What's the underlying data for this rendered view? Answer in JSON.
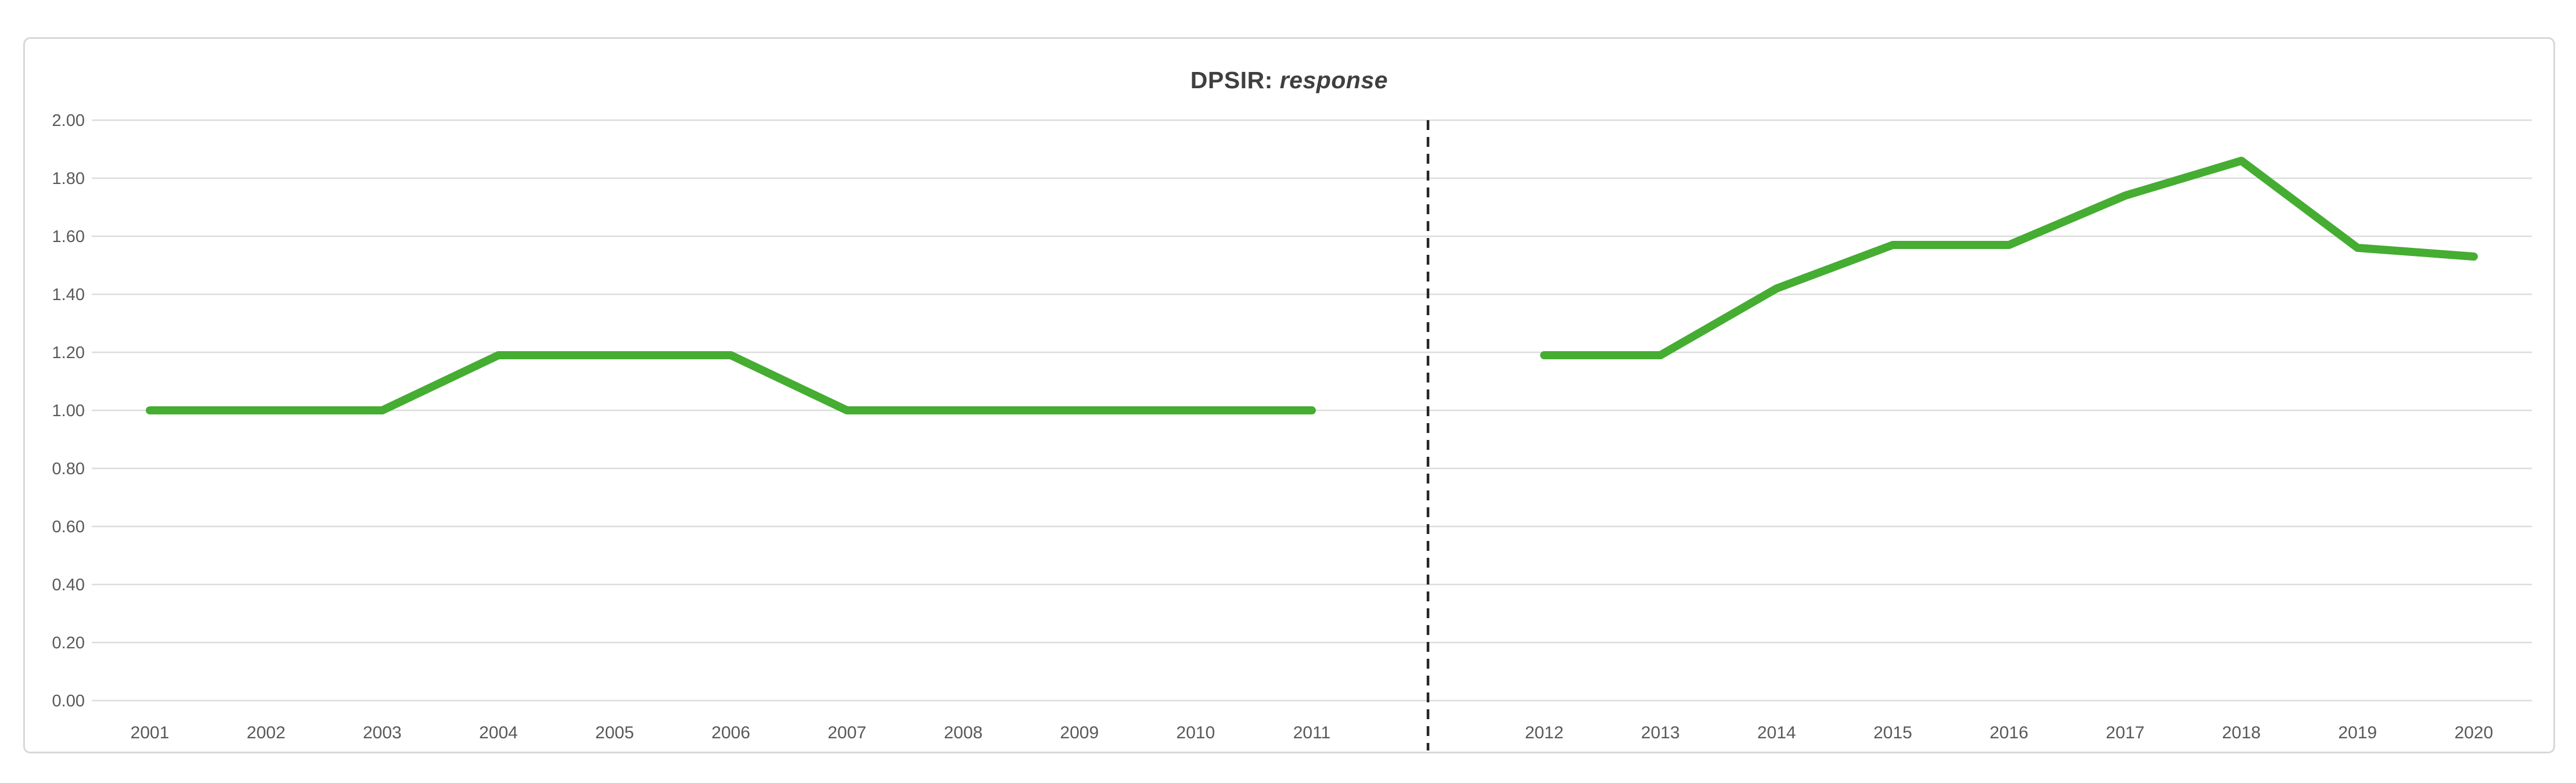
{
  "window": {
    "background": "#ffffff"
  },
  "chart": {
    "title_prefix": "DPSIR: ",
    "title_emphasis": "response"
  },
  "colors": {
    "line_green": "#45ad31",
    "divider_black": "#262626",
    "gridline_gray": "#dcdcdc",
    "tick_label_gray": "#595959",
    "title_gray": "#3f3f3f",
    "frame_border_gray": "#d8d8d8"
  },
  "chart_data": {
    "type": "line",
    "title": "DPSIR: response",
    "xlabel": "",
    "ylabel": "",
    "ylim": [
      0.0,
      2.0
    ],
    "ytick_labels": [
      "0.00",
      "0.20",
      "0.40",
      "0.60",
      "0.80",
      "1.00",
      "1.20",
      "1.40",
      "1.60",
      "1.80",
      "2.00"
    ],
    "grid": true,
    "legend": "none",
    "slots": [
      "2001",
      "2002",
      "2003",
      "2004",
      "2005",
      "2006",
      "2007",
      "2008",
      "2009",
      "2010",
      "2011",
      "",
      "2012",
      "2013",
      "2014",
      "2015",
      "2016",
      "2017",
      "2018",
      "2019",
      "2020"
    ],
    "divider": {
      "style": "dashed",
      "between": [
        "2011",
        "2012"
      ]
    },
    "series": [
      {
        "name": "response 2001-2011",
        "start_slot": 0,
        "x": [
          "2001",
          "2002",
          "2003",
          "2004",
          "2005",
          "2006",
          "2007",
          "2008",
          "2009",
          "2010",
          "2011"
        ],
        "values": [
          1.0,
          1.0,
          1.0,
          1.19,
          1.19,
          1.19,
          1.0,
          1.0,
          1.0,
          1.0,
          1.0
        ]
      },
      {
        "name": "response 2012-2020",
        "start_slot": 12,
        "x": [
          "2012",
          "2013",
          "2014",
          "2015",
          "2016",
          "2017",
          "2018",
          "2019",
          "2020"
        ],
        "values": [
          1.19,
          1.19,
          1.42,
          1.57,
          1.57,
          1.74,
          1.86,
          1.56,
          1.53
        ]
      }
    ]
  }
}
